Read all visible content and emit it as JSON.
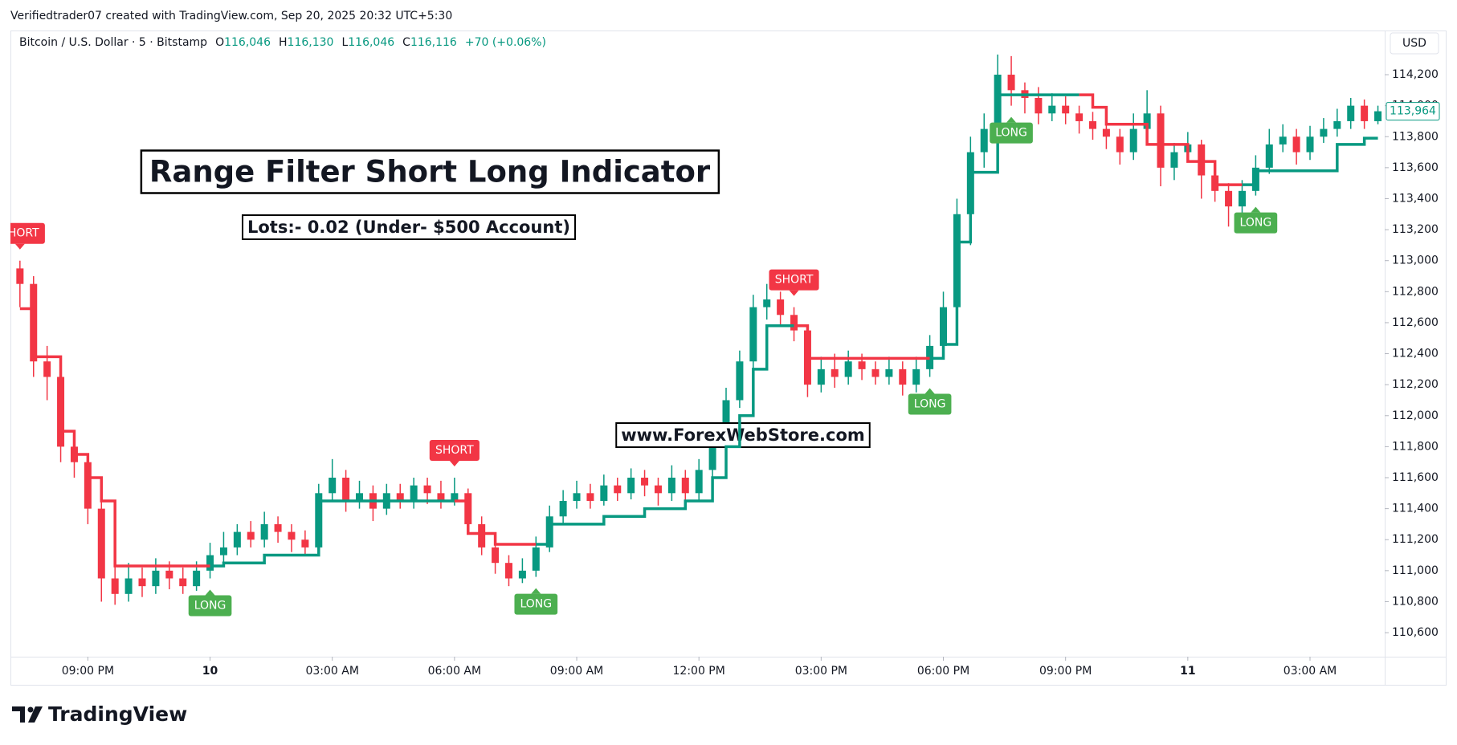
{
  "header": {
    "attribution": "Verifiedtrader07 created with TradingView.com, Sep 20, 2025 20:32 UTC+5:30"
  },
  "footer": {
    "brand": "TradingView"
  },
  "chart_data": {
    "type": "candlestick",
    "symbol": "Bitcoin / U.S. Dollar · 5 · Bitstamp",
    "ohlc_legend": [
      {
        "key": "O",
        "text": "116,046"
      },
      {
        "key": "H",
        "text": "116,130"
      },
      {
        "key": "L",
        "text": "116,046"
      },
      {
        "key": "C",
        "text": "116,116"
      }
    ],
    "change": "+70 (+0.06%)",
    "currency": "USD",
    "annotations": {
      "title": "Range Filter Short Long Indicator",
      "subtitle": "Lots:- 0.02 (Under- $500 Account)",
      "website": "www.ForexWebStore.com"
    },
    "up_color": "#089981",
    "down_color": "#f23645",
    "x": [
      1,
      2,
      3,
      4,
      5,
      6,
      7,
      8,
      9,
      10,
      11,
      12,
      13,
      14,
      15,
      16,
      17,
      18,
      19,
      20,
      21,
      22,
      23,
      24,
      25,
      26,
      27,
      28,
      29,
      30,
      31,
      32,
      33,
      34,
      35,
      36,
      37,
      38,
      39,
      40,
      41,
      42,
      43,
      44,
      45,
      46,
      47,
      48,
      49,
      50,
      51,
      52,
      53,
      54,
      55,
      56,
      57,
      58,
      59,
      60,
      61,
      62,
      63,
      64,
      65,
      66,
      67,
      68,
      69,
      70,
      71,
      72,
      73,
      74,
      75,
      76,
      77,
      78,
      79,
      80,
      81,
      82,
      83,
      84,
      85,
      86,
      87,
      88,
      89,
      90,
      91,
      92,
      93,
      94,
      95,
      96,
      97,
      98,
      99,
      100,
      101
    ],
    "open": [
      112950,
      112850,
      112350,
      112250,
      111800,
      111700,
      111400,
      110950,
      110850,
      110950,
      110900,
      111000,
      110950,
      110900,
      111000,
      111100,
      111150,
      111250,
      111200,
      111300,
      111250,
      111200,
      111150,
      111500,
      111600,
      111450,
      111500,
      111400,
      111500,
      111450,
      111550,
      111500,
      111450,
      111500,
      111300,
      111150,
      111050,
      110950,
      111000,
      111150,
      111350,
      111450,
      111500,
      111450,
      111550,
      111500,
      111600,
      111550,
      111500,
      111600,
      111500,
      111650,
      111850,
      112100,
      112350,
      112700,
      112750,
      112650,
      112550,
      112200,
      112300,
      112250,
      112350,
      112300,
      112250,
      112300,
      112200,
      112300,
      112450,
      112700,
      113300,
      113700,
      113850,
      114200,
      114100,
      114050,
      113950,
      114000,
      113950,
      113900,
      113850,
      113800,
      113700,
      113850,
      113950,
      113600,
      113700,
      113750,
      113550,
      113450,
      113350,
      113450,
      113600,
      113750,
      113800,
      113700,
      113800,
      113850,
      113900,
      114000,
      113900
    ],
    "high": [
      113000,
      112900,
      112450,
      112300,
      111900,
      111750,
      111450,
      111050,
      111050,
      111020,
      111080,
      111060,
      111020,
      111060,
      111180,
      111250,
      111300,
      111320,
      111380,
      111350,
      111300,
      111260,
      111560,
      111720,
      111650,
      111580,
      111550,
      111560,
      111560,
      111600,
      111600,
      111580,
      111600,
      111530,
      111350,
      111200,
      111100,
      111080,
      111220,
      111420,
      111520,
      111580,
      111560,
      111620,
      111600,
      111660,
      111650,
      111600,
      111680,
      111650,
      111720,
      111920,
      112180,
      112420,
      112780,
      112850,
      112800,
      112700,
      112580,
      112380,
      112400,
      112420,
      112400,
      112350,
      112380,
      112350,
      112380,
      112520,
      112800,
      113400,
      113800,
      113950,
      114330,
      114320,
      114150,
      114120,
      114080,
      114060,
      114000,
      113960,
      113900,
      113850,
      113950,
      114100,
      114000,
      113760,
      113830,
      113780,
      113600,
      113500,
      113520,
      113680,
      113850,
      113880,
      113850,
      113870,
      113920,
      113980,
      114050,
      114040,
      114000
    ],
    "low": [
      112700,
      112250,
      112100,
      111700,
      111600,
      111300,
      110800,
      110780,
      110800,
      110830,
      110850,
      110880,
      110850,
      110870,
      110950,
      111050,
      111100,
      111150,
      111150,
      111180,
      111120,
      111100,
      111120,
      111450,
      111380,
      111400,
      111320,
      111360,
      111400,
      111400,
      111430,
      111400,
      111420,
      111250,
      111100,
      110980,
      110900,
      110920,
      110960,
      111120,
      111300,
      111400,
      111400,
      111420,
      111450,
      111460,
      111480,
      111420,
      111450,
      111420,
      111450,
      111600,
      111800,
      112050,
      112300,
      112620,
      112580,
      112480,
      112120,
      112150,
      112180,
      112200,
      112230,
      112200,
      112200,
      112130,
      112150,
      112250,
      112400,
      112650,
      113100,
      113600,
      113800,
      114000,
      113950,
      113880,
      113900,
      113880,
      113820,
      113780,
      113720,
      113620,
      113650,
      113800,
      113480,
      113520,
      113650,
      113400,
      113380,
      113220,
      113300,
      113420,
      113560,
      113700,
      113620,
      113650,
      113760,
      113800,
      113850,
      113850,
      113880
    ],
    "close": [
      112850,
      112350,
      112250,
      111800,
      111700,
      111400,
      110950,
      110850,
      110950,
      110900,
      111000,
      110950,
      110900,
      111000,
      111100,
      111150,
      111250,
      111200,
      111300,
      111250,
      111200,
      111150,
      111500,
      111600,
      111450,
      111500,
      111400,
      111500,
      111450,
      111550,
      111500,
      111450,
      111500,
      111300,
      111150,
      111050,
      110950,
      111000,
      111150,
      111350,
      111450,
      111500,
      111450,
      111550,
      111500,
      111600,
      111550,
      111500,
      111600,
      111500,
      111650,
      111850,
      112100,
      112350,
      112700,
      112750,
      112650,
      112550,
      112200,
      112300,
      112250,
      112350,
      112300,
      112250,
      112300,
      112200,
      112300,
      112450,
      112700,
      113300,
      113700,
      113850,
      114200,
      114100,
      114050,
      113950,
      114000,
      113950,
      113900,
      113850,
      113800,
      113700,
      113850,
      113950,
      113600,
      113700,
      113750,
      113550,
      113450,
      113350,
      113450,
      113600,
      113750,
      113800,
      113700,
      113800,
      113850,
      113900,
      114000,
      113900,
      113964
    ],
    "filter": {
      "up_color": "#089981",
      "down_color": "#f23645",
      "values": [
        112690,
        112380,
        112380,
        111900,
        111750,
        111600,
        111450,
        111030,
        111030,
        111030,
        111030,
        111030,
        111030,
        111030,
        111030,
        111050,
        111050,
        111050,
        111100,
        111100,
        111100,
        111100,
        111450,
        111450,
        111450,
        111450,
        111450,
        111450,
        111450,
        111450,
        111450,
        111450,
        111450,
        111240,
        111240,
        111170,
        111170,
        111170,
        111170,
        111300,
        111300,
        111300,
        111300,
        111350,
        111350,
        111350,
        111400,
        111400,
        111400,
        111450,
        111450,
        111600,
        111800,
        112000,
        112300,
        112580,
        112580,
        112580,
        112370,
        112370,
        112370,
        112370,
        112370,
        112370,
        112370,
        112370,
        112370,
        112370,
        112460,
        113120,
        113570,
        113570,
        114070,
        114070,
        114070,
        114070,
        114070,
        114070,
        114070,
        113990,
        113880,
        113880,
        113880,
        113750,
        113750,
        113750,
        113640,
        113640,
        113490,
        113490,
        113490,
        113580,
        113580,
        113580,
        113580,
        113580,
        113580,
        113750,
        113750,
        113790,
        113790
      ]
    },
    "signals": [
      {
        "label": "SHORT",
        "x": 1,
        "color": "#f23645"
      },
      {
        "label": "LONG",
        "x": 15,
        "color": "#4caf50"
      },
      {
        "label": "SHORT",
        "x": 33,
        "color": "#f23645"
      },
      {
        "label": "LONG",
        "x": 39,
        "color": "#4caf50"
      },
      {
        "label": "SHORT",
        "x": 58,
        "color": "#f23645"
      },
      {
        "label": "LONG",
        "x": 68,
        "color": "#4caf50"
      },
      {
        "label": "LONG",
        "x": 74,
        "color": "#4caf50"
      },
      {
        "label": "LONG",
        "x": 92,
        "color": "#4caf50"
      }
    ],
    "last_price": {
      "value": 113964,
      "label": "113,964"
    },
    "xlim": [
      0.3,
      101.5
    ],
    "xticks": [
      {
        "value": 6,
        "label": "09:00 PM"
      },
      {
        "value": 15,
        "label": "10"
      },
      {
        "value": 24,
        "label": "03:00 AM"
      },
      {
        "value": 33,
        "label": "06:00 AM"
      },
      {
        "value": 42,
        "label": "09:00 AM"
      },
      {
        "value": 51,
        "label": "12:00 PM"
      },
      {
        "value": 60,
        "label": "03:00 PM"
      },
      {
        "value": 69,
        "label": "06:00 PM"
      },
      {
        "value": 78,
        "label": "09:00 PM"
      },
      {
        "value": 87,
        "label": "11"
      },
      {
        "value": 96,
        "label": "03:00 AM"
      }
    ],
    "ylim": [
      110445,
      114485
    ],
    "yticks": [
      {
        "value": 110600,
        "label": "110,600"
      },
      {
        "value": 110800,
        "label": "110,800"
      },
      {
        "value": 111000,
        "label": "111,000"
      },
      {
        "value": 111200,
        "label": "111,200"
      },
      {
        "value": 111400,
        "label": "111,400"
      },
      {
        "value": 111600,
        "label": "111,600"
      },
      {
        "value": 111800,
        "label": "111,800"
      },
      {
        "value": 112000,
        "label": "112,000"
      },
      {
        "value": 112200,
        "label": "112,200"
      },
      {
        "value": 112400,
        "label": "112,400"
      },
      {
        "value": 112600,
        "label": "112,600"
      },
      {
        "value": 112800,
        "label": "112,800"
      },
      {
        "value": 113000,
        "label": "113,000"
      },
      {
        "value": 113200,
        "label": "113,200"
      },
      {
        "value": 113400,
        "label": "113,400"
      },
      {
        "value": 113600,
        "label": "113,600"
      },
      {
        "value": 113800,
        "label": "113,800"
      },
      {
        "value": 114000,
        "label": "114,000"
      },
      {
        "value": 114200,
        "label": "114,200"
      }
    ]
  }
}
